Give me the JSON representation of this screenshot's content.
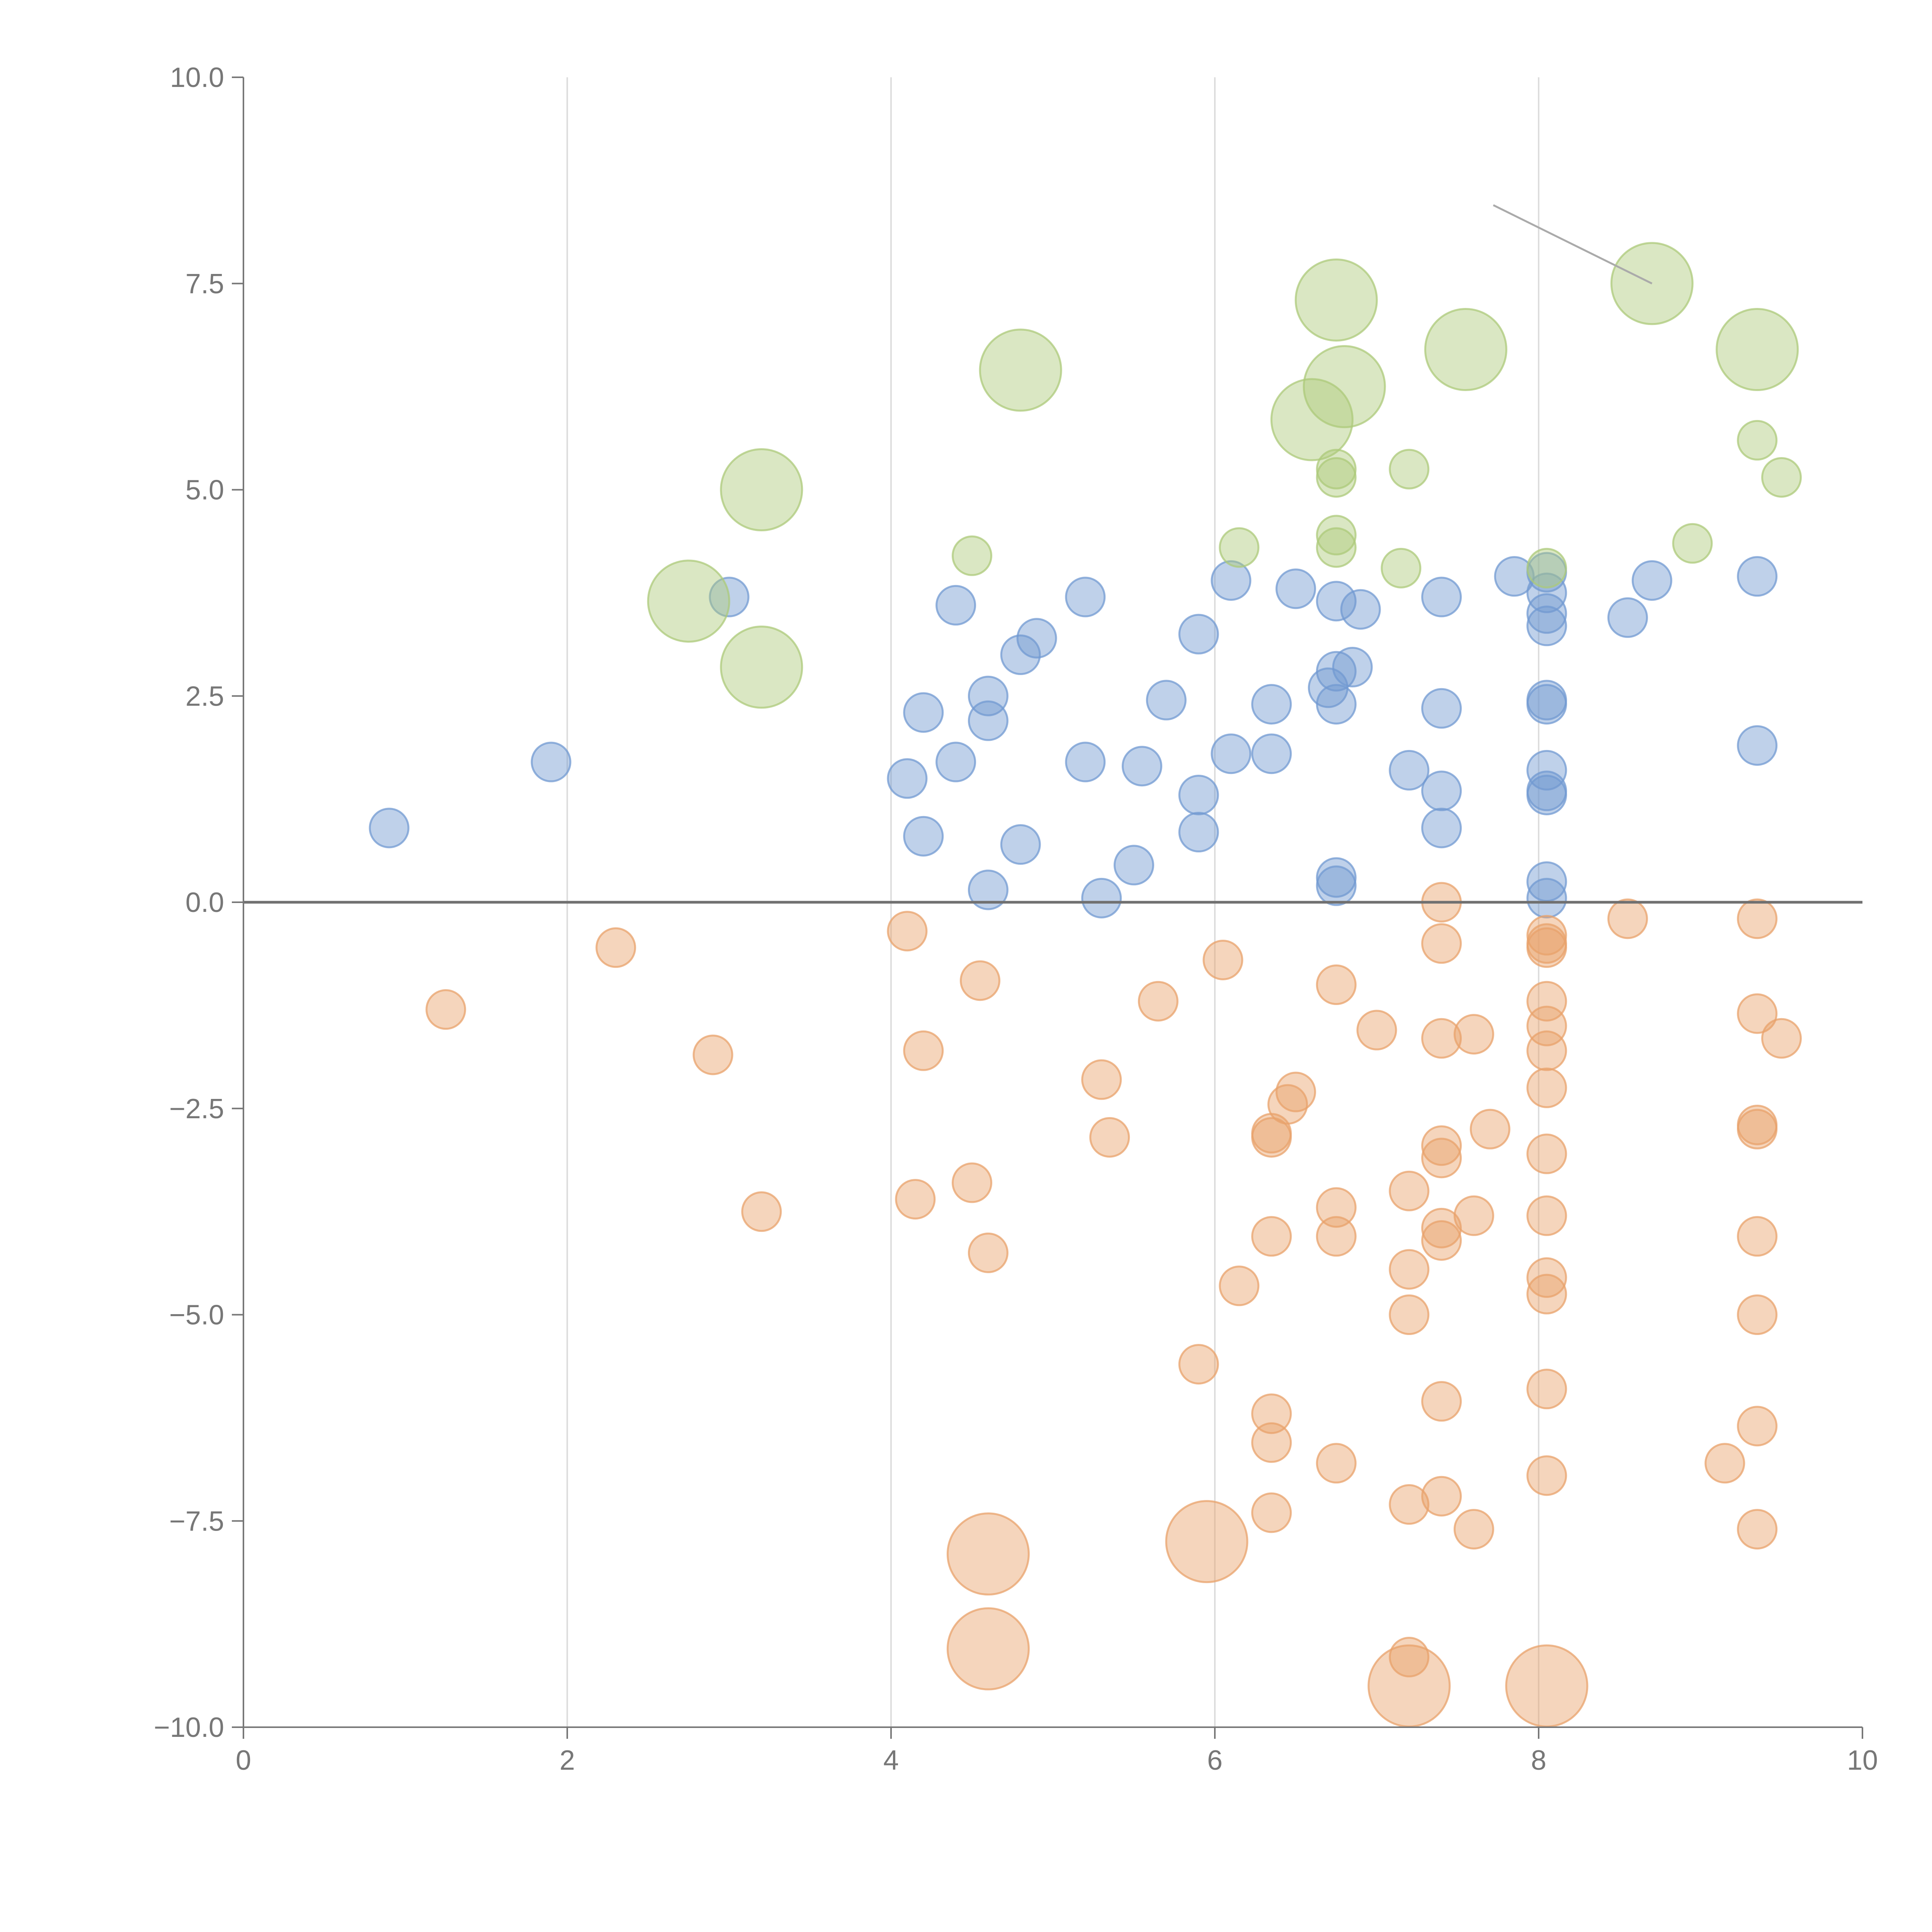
{
  "chart_data": {
    "type": "scatter",
    "title": "",
    "xlabel": "",
    "ylabel": "",
    "xlim": [
      0,
      10
    ],
    "ylim": [
      -10,
      10
    ],
    "x_ticks": [
      0,
      2,
      4,
      6,
      8,
      10
    ],
    "y_ticks": [
      10,
      7.5,
      5,
      2.5,
      0,
      -2.5,
      -5,
      -7.5,
      -10
    ],
    "x_tick_labels": [
      "0",
      "2",
      "4",
      "6",
      "8",
      "10"
    ],
    "y_tick_labels": [
      "10.0",
      "7.5",
      "5.0",
      "2.5",
      "0.0",
      "−2.5",
      "−5.0",
      "−7.5",
      "−10.0"
    ],
    "grid": "vertical",
    "reference_line_y": 0,
    "size_units": "relative (small ≈ 1, large ≈ 2.2)",
    "series": [
      {
        "name": "blue",
        "color": "#7299d1",
        "points": [
          {
            "x": 0.9,
            "y": 0.9,
            "s": 1
          },
          {
            "x": 1.9,
            "y": 1.7,
            "s": 1
          },
          {
            "x": 3.0,
            "y": 3.7,
            "s": 1
          },
          {
            "x": 4.1,
            "y": 1.5,
            "s": 1
          },
          {
            "x": 4.2,
            "y": 2.3,
            "s": 1
          },
          {
            "x": 4.2,
            "y": 0.8,
            "s": 1
          },
          {
            "x": 4.4,
            "y": 3.6,
            "s": 1
          },
          {
            "x": 4.4,
            "y": 1.7,
            "s": 1
          },
          {
            "x": 4.6,
            "y": 2.5,
            "s": 1
          },
          {
            "x": 4.6,
            "y": 2.2,
            "s": 1
          },
          {
            "x": 4.6,
            "y": 0.15,
            "s": 1
          },
          {
            "x": 4.8,
            "y": 3.0,
            "s": 1
          },
          {
            "x": 4.8,
            "y": 0.7,
            "s": 1
          },
          {
            "x": 4.9,
            "y": 3.2,
            "s": 1
          },
          {
            "x": 5.2,
            "y": 1.7,
            "s": 1
          },
          {
            "x": 5.2,
            "y": 3.7,
            "s": 1
          },
          {
            "x": 5.3,
            "y": 0.05,
            "s": 1
          },
          {
            "x": 5.5,
            "y": 0.45,
            "s": 1
          },
          {
            "x": 5.55,
            "y": 1.65,
            "s": 1
          },
          {
            "x": 5.7,
            "y": 2.45,
            "s": 1
          },
          {
            "x": 5.9,
            "y": 3.25,
            "s": 1
          },
          {
            "x": 5.9,
            "y": 1.3,
            "s": 1
          },
          {
            "x": 5.9,
            "y": 0.85,
            "s": 1
          },
          {
            "x": 6.1,
            "y": 3.9,
            "s": 1
          },
          {
            "x": 6.1,
            "y": 1.8,
            "s": 1
          },
          {
            "x": 6.35,
            "y": 2.4,
            "s": 1
          },
          {
            "x": 6.35,
            "y": 1.8,
            "s": 1
          },
          {
            "x": 6.5,
            "y": 3.8,
            "s": 1
          },
          {
            "x": 6.75,
            "y": 3.65,
            "s": 1
          },
          {
            "x": 6.75,
            "y": 2.8,
            "s": 1
          },
          {
            "x": 6.7,
            "y": 2.6,
            "s": 1
          },
          {
            "x": 6.75,
            "y": 2.4,
            "s": 1
          },
          {
            "x": 6.85,
            "y": 2.85,
            "s": 1
          },
          {
            "x": 6.9,
            "y": 3.55,
            "s": 1
          },
          {
            "x": 6.75,
            "y": 0.3,
            "s": 1
          },
          {
            "x": 6.75,
            "y": 0.2,
            "s": 1
          },
          {
            "x": 7.2,
            "y": 1.6,
            "s": 1
          },
          {
            "x": 7.4,
            "y": 3.7,
            "s": 1
          },
          {
            "x": 7.4,
            "y": 2.35,
            "s": 1
          },
          {
            "x": 7.4,
            "y": 1.35,
            "s": 1
          },
          {
            "x": 7.4,
            "y": 0.9,
            "s": 1
          },
          {
            "x": 7.85,
            "y": 3.95,
            "s": 1
          },
          {
            "x": 8.05,
            "y": 4.0,
            "s": 1
          },
          {
            "x": 8.05,
            "y": 3.75,
            "s": 1
          },
          {
            "x": 8.05,
            "y": 3.5,
            "s": 1
          },
          {
            "x": 8.05,
            "y": 3.35,
            "s": 1
          },
          {
            "x": 8.05,
            "y": 2.45,
            "s": 1
          },
          {
            "x": 8.05,
            "y": 2.4,
            "s": 1
          },
          {
            "x": 8.05,
            "y": 1.6,
            "s": 1
          },
          {
            "x": 8.05,
            "y": 1.35,
            "s": 1
          },
          {
            "x": 8.05,
            "y": 1.3,
            "s": 1
          },
          {
            "x": 8.05,
            "y": 0.25,
            "s": 1
          },
          {
            "x": 8.05,
            "y": 0.05,
            "s": 1
          },
          {
            "x": 8.55,
            "y": 3.45,
            "s": 1
          },
          {
            "x": 8.7,
            "y": 3.9,
            "s": 1
          },
          {
            "x": 9.35,
            "y": 3.95,
            "s": 1
          },
          {
            "x": 9.35,
            "y": 1.9,
            "s": 1
          }
        ]
      },
      {
        "name": "orange",
        "color": "#e8a26b",
        "points": [
          {
            "x": 1.25,
            "y": -1.3,
            "s": 1
          },
          {
            "x": 2.3,
            "y": -0.55,
            "s": 1
          },
          {
            "x": 2.9,
            "y": -1.85,
            "s": 1
          },
          {
            "x": 3.2,
            "y": -3.75,
            "s": 1
          },
          {
            "x": 4.1,
            "y": -0.35,
            "s": 1
          },
          {
            "x": 4.2,
            "y": -1.8,
            "s": 1
          },
          {
            "x": 4.15,
            "y": -3.6,
            "s": 1
          },
          {
            "x": 4.5,
            "y": -3.4,
            "s": 1
          },
          {
            "x": 4.55,
            "y": -0.95,
            "s": 1
          },
          {
            "x": 4.6,
            "y": -4.25,
            "s": 1
          },
          {
            "x": 4.6,
            "y": -7.9,
            "s": 2.1
          },
          {
            "x": 4.6,
            "y": -9.05,
            "s": 2.1
          },
          {
            "x": 5.3,
            "y": -2.15,
            "s": 1
          },
          {
            "x": 5.35,
            "y": -2.85,
            "s": 1
          },
          {
            "x": 5.65,
            "y": -1.2,
            "s": 1
          },
          {
            "x": 5.9,
            "y": -5.6,
            "s": 1
          },
          {
            "x": 5.95,
            "y": -7.75,
            "s": 2.1
          },
          {
            "x": 6.05,
            "y": -0.7,
            "s": 1
          },
          {
            "x": 6.15,
            "y": -4.65,
            "s": 1
          },
          {
            "x": 6.35,
            "y": -2.8,
            "s": 1
          },
          {
            "x": 6.35,
            "y": -2.85,
            "s": 1
          },
          {
            "x": 6.35,
            "y": -4.05,
            "s": 1
          },
          {
            "x": 6.35,
            "y": -6.2,
            "s": 1
          },
          {
            "x": 6.35,
            "y": -6.55,
            "s": 1
          },
          {
            "x": 6.35,
            "y": -7.4,
            "s": 1
          },
          {
            "x": 6.5,
            "y": -2.3,
            "s": 1
          },
          {
            "x": 6.45,
            "y": -2.45,
            "s": 1
          },
          {
            "x": 6.75,
            "y": -1.0,
            "s": 1
          },
          {
            "x": 6.75,
            "y": -3.7,
            "s": 1
          },
          {
            "x": 6.75,
            "y": -4.05,
            "s": 1
          },
          {
            "x": 6.75,
            "y": -6.8,
            "s": 1
          },
          {
            "x": 7.0,
            "y": -1.55,
            "s": 1
          },
          {
            "x": 7.2,
            "y": -3.5,
            "s": 1
          },
          {
            "x": 7.2,
            "y": -4.45,
            "s": 1
          },
          {
            "x": 7.2,
            "y": -5.0,
            "s": 1
          },
          {
            "x": 7.2,
            "y": -7.3,
            "s": 1
          },
          {
            "x": 7.2,
            "y": -9.15,
            "s": 1
          },
          {
            "x": 7.2,
            "y": -9.5,
            "s": 2.1
          },
          {
            "x": 7.4,
            "y": 0.0,
            "s": 1
          },
          {
            "x": 7.4,
            "y": -0.5,
            "s": 1
          },
          {
            "x": 7.4,
            "y": -1.65,
            "s": 1
          },
          {
            "x": 7.4,
            "y": -2.95,
            "s": 1
          },
          {
            "x": 7.4,
            "y": -3.1,
            "s": 1
          },
          {
            "x": 7.4,
            "y": -3.95,
            "s": 1
          },
          {
            "x": 7.4,
            "y": -4.1,
            "s": 1
          },
          {
            "x": 7.4,
            "y": -6.05,
            "s": 1
          },
          {
            "x": 7.4,
            "y": -7.2,
            "s": 1
          },
          {
            "x": 7.6,
            "y": -1.6,
            "s": 1
          },
          {
            "x": 7.6,
            "y": -3.8,
            "s": 1
          },
          {
            "x": 7.6,
            "y": -7.6,
            "s": 1
          },
          {
            "x": 7.7,
            "y": -2.75,
            "s": 1
          },
          {
            "x": 8.05,
            "y": -0.4,
            "s": 1
          },
          {
            "x": 8.05,
            "y": -0.5,
            "s": 1
          },
          {
            "x": 8.05,
            "y": -0.55,
            "s": 1
          },
          {
            "x": 8.05,
            "y": -1.2,
            "s": 1
          },
          {
            "x": 8.05,
            "y": -1.5,
            "s": 1
          },
          {
            "x": 8.05,
            "y": -1.8,
            "s": 1
          },
          {
            "x": 8.05,
            "y": -2.25,
            "s": 1
          },
          {
            "x": 8.05,
            "y": -3.05,
            "s": 1
          },
          {
            "x": 8.05,
            "y": -3.8,
            "s": 1
          },
          {
            "x": 8.05,
            "y": -4.55,
            "s": 1
          },
          {
            "x": 8.05,
            "y": -4.75,
            "s": 1
          },
          {
            "x": 8.05,
            "y": -5.9,
            "s": 1
          },
          {
            "x": 8.05,
            "y": -6.95,
            "s": 1
          },
          {
            "x": 8.05,
            "y": -9.5,
            "s": 2.1
          },
          {
            "x": 8.55,
            "y": -0.2,
            "s": 1
          },
          {
            "x": 9.15,
            "y": -6.8,
            "s": 1
          },
          {
            "x": 9.35,
            "y": -0.2,
            "s": 1
          },
          {
            "x": 9.35,
            "y": -1.35,
            "s": 1
          },
          {
            "x": 9.35,
            "y": -2.7,
            "s": 1
          },
          {
            "x": 9.35,
            "y": -2.75,
            "s": 1
          },
          {
            "x": 9.35,
            "y": -4.05,
            "s": 1
          },
          {
            "x": 9.35,
            "y": -5.0,
            "s": 1
          },
          {
            "x": 9.35,
            "y": -6.35,
            "s": 1
          },
          {
            "x": 9.35,
            "y": -7.6,
            "s": 1
          },
          {
            "x": 9.5,
            "y": -1.65,
            "s": 1
          }
        ]
      },
      {
        "name": "green",
        "color": "#acc97a",
        "points": [
          {
            "x": 2.75,
            "y": 3.65,
            "s": 2.1
          },
          {
            "x": 3.2,
            "y": 5.0,
            "s": 2.1
          },
          {
            "x": 3.2,
            "y": 2.85,
            "s": 2.1
          },
          {
            "x": 4.5,
            "y": 4.2,
            "s": 1
          },
          {
            "x": 4.8,
            "y": 6.45,
            "s": 2.1
          },
          {
            "x": 6.15,
            "y": 4.3,
            "s": 1
          },
          {
            "x": 6.6,
            "y": 5.85,
            "s": 2.1
          },
          {
            "x": 6.75,
            "y": 7.3,
            "s": 2.1
          },
          {
            "x": 6.8,
            "y": 6.25,
            "s": 2.1
          },
          {
            "x": 6.75,
            "y": 5.25,
            "s": 1
          },
          {
            "x": 6.75,
            "y": 5.15,
            "s": 1
          },
          {
            "x": 6.75,
            "y": 4.45,
            "s": 1
          },
          {
            "x": 6.75,
            "y": 4.3,
            "s": 1
          },
          {
            "x": 7.15,
            "y": 4.05,
            "s": 1
          },
          {
            "x": 7.2,
            "y": 5.25,
            "s": 1
          },
          {
            "x": 7.55,
            "y": 6.7,
            "s": 2.1
          },
          {
            "x": 8.05,
            "y": 4.05,
            "s": 1
          },
          {
            "x": 8.7,
            "y": 7.5,
            "s": 2.1
          },
          {
            "x": 8.95,
            "y": 4.35,
            "s": 1
          },
          {
            "x": 9.35,
            "y": 6.7,
            "s": 2.1
          },
          {
            "x": 9.35,
            "y": 5.6,
            "s": 1
          },
          {
            "x": 9.5,
            "y": 5.15,
            "s": 1
          }
        ]
      }
    ]
  }
}
